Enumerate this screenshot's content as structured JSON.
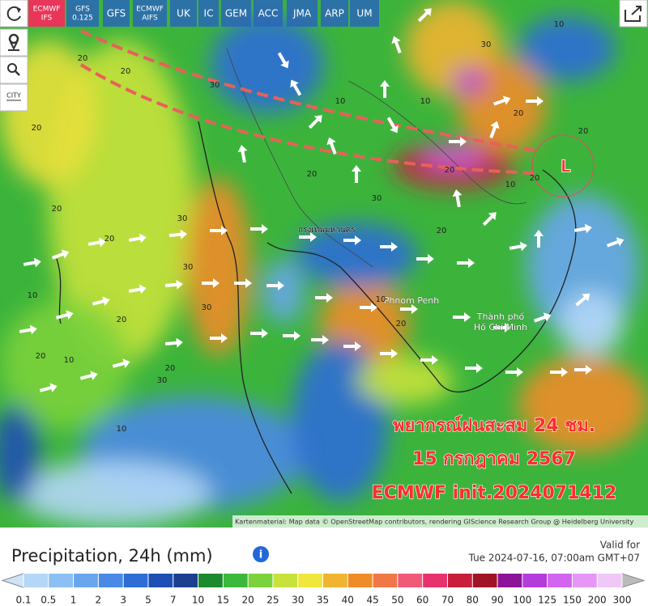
{
  "toolbar": {
    "models": [
      [
        "ECMWF",
        "IFS"
      ],
      [
        "GFS",
        "0.125"
      ],
      [
        "GFS"
      ],
      [
        "ECMWF",
        "AIFS"
      ],
      [
        "UK"
      ],
      [
        "IC"
      ],
      [
        "GEM"
      ],
      [
        "ACC"
      ],
      [
        "JMA"
      ],
      [
        "ARP"
      ],
      [
        "UM"
      ]
    ]
  },
  "side_tools": {
    "city": "CITY"
  },
  "map": {
    "place_labels": [
      "กรุงเทพมหานคร",
      "Phnom Penh",
      "Thành phố",
      "Hồ Chí Minh"
    ],
    "contour_labels": [
      20,
      20,
      20,
      30,
      20,
      30,
      20,
      30,
      10,
      20,
      30,
      20,
      30,
      10,
      20,
      20,
      10,
      30,
      10,
      20,
      30,
      20,
      10,
      20,
      20,
      10,
      10,
      20,
      10,
      20
    ],
    "low_label": "L",
    "overlay": [
      "พยากรณ์ฝนสะสม 24 ชม.",
      "15 กรกฎาคม 2567",
      "ECMWF init.2024071412"
    ],
    "attribution": "Kartenmaterial: Map data © OpenStreetMap contributors, rendering GIScience Research Group @ Heidelberg University"
  },
  "legend": {
    "title": "Precipitation, 24h (mm)",
    "valid_label": "Valid for",
    "valid_time": "Tue 2024-07-16, 07:00am GMT+07",
    "scale": [
      0.1,
      0.5,
      1,
      2,
      3,
      5,
      7,
      10,
      15,
      20,
      25,
      30,
      35,
      40,
      45,
      50,
      60,
      70,
      80,
      90,
      100,
      125,
      150,
      200,
      300
    ],
    "colors": [
      "#b4d7f7",
      "#8cc0f2",
      "#6aa6ee",
      "#4a8ae6",
      "#2f6dd6",
      "#1e4fb4",
      "#1c3f8f",
      "#1c8a2e",
      "#3cb83c",
      "#7cd23c",
      "#c8e23c",
      "#f0e63c",
      "#f0b432",
      "#f08c28",
      "#f07846",
      "#f05a78",
      "#e8326e",
      "#c81e3c",
      "#a01428",
      "#8c1496",
      "#b43cdc",
      "#d264f0",
      "#e696f5",
      "#f0c8f8"
    ]
  }
}
